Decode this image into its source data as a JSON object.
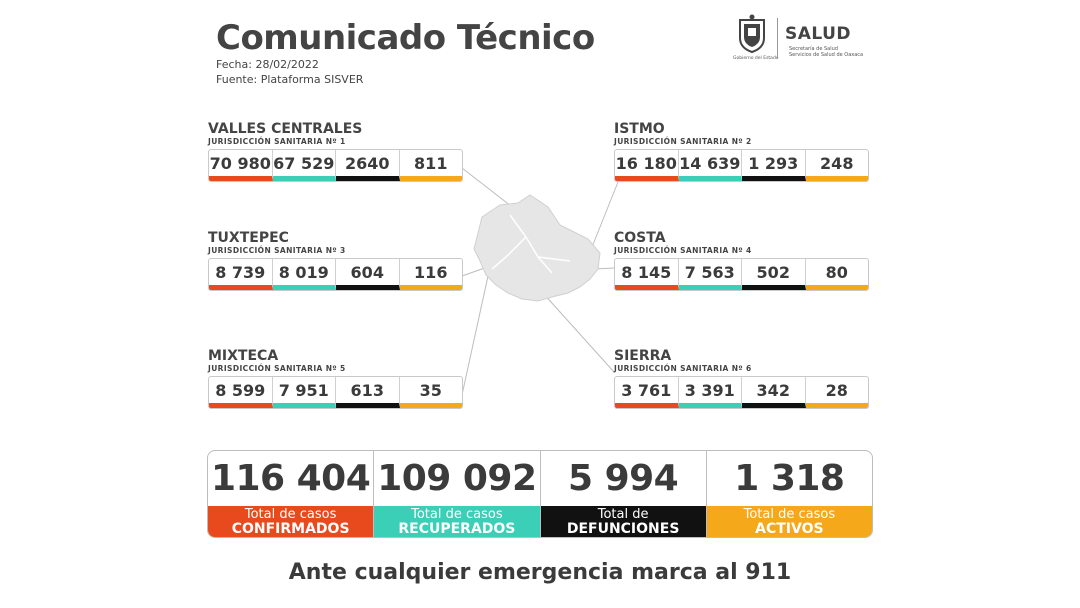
{
  "header": {
    "title": "Comunicado Técnico",
    "fecha": "Fecha: 28/02/2022",
    "fuente": "Fuente: Plataforma SISVER"
  },
  "logo": {
    "gobierno": "Gobierno del Estado",
    "salud": "SALUD",
    "sub1": "Secretaría de Salud",
    "sub2": "Servicios de Salud de Oaxaca"
  },
  "regions": [
    {
      "name": "VALLES CENTRALES",
      "jur": "JURISDICCIÓN SANITARIA Nº 1",
      "values": [
        "70 980",
        "67 529",
        "2640",
        "811"
      ]
    },
    {
      "name": "ISTMO",
      "jur": "JURISDICCIÓN SANITARIA Nº 2",
      "values": [
        "16 180",
        "14 639",
        "1 293",
        "248"
      ]
    },
    {
      "name": "TUXTEPEC",
      "jur": "JURISDICCIÓN SANITARIA Nº 3",
      "values": [
        "8 739",
        "8 019",
        "604",
        "116"
      ]
    },
    {
      "name": "COSTA",
      "jur": "JURISDICCIÓN SANITARIA Nº 4",
      "values": [
        "8 145",
        "7 563",
        "502",
        "80"
      ]
    },
    {
      "name": "MIXTECA",
      "jur": "JURISDICCIÓN SANITARIA Nº 5",
      "values": [
        "8 599",
        "7 951",
        "613",
        "35"
      ]
    },
    {
      "name": "SIERRA",
      "jur": "JURISDICCIÓN SANITARIA Nº 6",
      "values": [
        "3 761",
        "3 391",
        "342",
        "28"
      ]
    }
  ],
  "totals": [
    {
      "value": "116 404",
      "line1": "Total de casos",
      "line2": "CONFIRMADOS"
    },
    {
      "value": "109 092",
      "line1": "Total de casos",
      "line2": "RECUPERADOS"
    },
    {
      "value": "5 994",
      "line1": "Total de",
      "line2": "DEFUNCIONES"
    },
    {
      "value": "1 318",
      "line1": "Total de casos",
      "line2": "ACTIVOS"
    }
  ],
  "footer": "Ante cualquier emergencia marca al 911",
  "colors": {
    "confirmados": "#e84a1e",
    "recuperados": "#3ccfb7",
    "defunciones": "#111111",
    "activos": "#f5a91a"
  },
  "icons": [
    "oaxaca-map-icon",
    "coat-of-arms-icon"
  ]
}
